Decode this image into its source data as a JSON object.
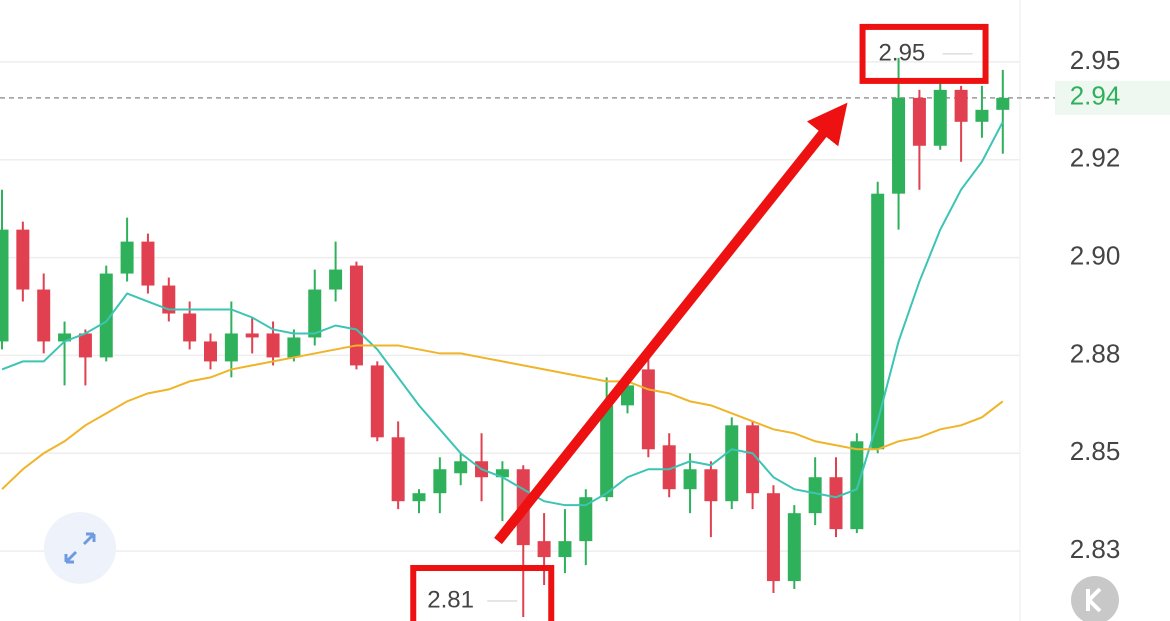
{
  "chart_data": {
    "type": "candlestick",
    "ylim": [
      2.809,
      2.9645
    ],
    "yticks": [
      {
        "value": 2.949,
        "label": "2.95"
      },
      {
        "value": 2.9245,
        "label": "2.92"
      },
      {
        "value": 2.9,
        "label": "2.90"
      },
      {
        "value": 2.8755,
        "label": "2.88"
      },
      {
        "value": 2.851,
        "label": "2.85"
      },
      {
        "value": 2.8265,
        "label": "2.83"
      }
    ],
    "grid": true,
    "up_color": "#2fb15b",
    "down_color": "#e0404f",
    "open": [
      2.879,
      2.907,
      2.892,
      2.879,
      2.881,
      2.875,
      2.896,
      2.904,
      2.893,
      2.886,
      2.879,
      2.874,
      2.881,
      2.881,
      2.875,
      2.88,
      2.892,
      2.898,
      2.873,
      2.855,
      2.839,
      2.841,
      2.846,
      2.849,
      2.845,
      2.847,
      2.829,
      2.825,
      2.829,
      2.84,
      2.863,
      2.872,
      2.853,
      2.842,
      2.847,
      2.839,
      2.858,
      2.841,
      2.819,
      2.836,
      2.845,
      2.832,
      2.852,
      2.916,
      2.94,
      2.928,
      2.942,
      2.934,
      2.937
    ],
    "high": [
      2.917,
      2.909,
      2.896,
      2.884,
      2.882,
      2.898,
      2.91,
      2.906,
      2.895,
      2.889,
      2.881,
      2.889,
      2.885,
      2.884,
      2.882,
      2.897,
      2.904,
      2.899,
      2.874,
      2.859,
      2.842,
      2.85,
      2.851,
      2.856,
      2.849,
      2.848,
      2.836,
      2.837,
      2.842,
      2.87,
      2.871,
      2.877,
      2.856,
      2.851,
      2.849,
      2.86,
      2.859,
      2.843,
      2.838,
      2.85,
      2.85,
      2.856,
      2.919,
      2.95,
      2.942,
      2.944,
      2.943,
      2.943,
      2.947
    ],
    "low": [
      2.877,
      2.889,
      2.876,
      2.868,
      2.868,
      2.874,
      2.894,
      2.891,
      2.884,
      2.877,
      2.872,
      2.87,
      2.876,
      2.873,
      2.874,
      2.878,
      2.889,
      2.872,
      2.854,
      2.837,
      2.836,
      2.836,
      2.843,
      2.839,
      2.834,
      2.81,
      2.818,
      2.821,
      2.823,
      2.839,
      2.861,
      2.85,
      2.84,
      2.836,
      2.83,
      2.837,
      2.837,
      2.816,
      2.817,
      2.833,
      2.83,
      2.831,
      2.851,
      2.907,
      2.917,
      2.927,
      2.924,
      2.93,
      2.926
    ],
    "close": [
      2.907,
      2.892,
      2.879,
      2.881,
      2.875,
      2.896,
      2.904,
      2.893,
      2.886,
      2.879,
      2.874,
      2.881,
      2.88,
      2.875,
      2.88,
      2.892,
      2.897,
      2.873,
      2.855,
      2.839,
      2.841,
      2.847,
      2.849,
      2.845,
      2.847,
      2.828,
      2.825,
      2.829,
      2.84,
      2.863,
      2.868,
      2.852,
      2.842,
      2.847,
      2.839,
      2.858,
      2.841,
      2.819,
      2.836,
      2.845,
      2.832,
      2.854,
      2.916,
      2.94,
      2.928,
      2.942,
      2.934,
      2.937,
      2.94
    ],
    "moving_averages": [
      {
        "color": "#3cc4b4",
        "values": [
          2.872,
          2.874,
          2.874,
          2.879,
          2.881,
          2.884,
          2.891,
          2.889,
          2.887,
          2.887,
          2.887,
          2.887,
          2.885,
          2.882,
          2.881,
          2.881,
          2.883,
          2.882,
          2.877,
          2.87,
          2.863,
          2.857,
          2.851,
          2.847,
          2.845,
          2.842,
          2.839,
          2.838,
          2.838,
          2.841,
          2.845,
          2.847,
          2.847,
          2.849,
          2.848,
          2.852,
          2.851,
          2.845,
          2.842,
          2.841,
          2.84,
          2.842,
          2.859,
          2.879,
          2.894,
          2.907,
          2.917,
          2.924,
          2.934
        ]
      },
      {
        "color": "#f0b429",
        "values": [
          2.842,
          2.847,
          2.851,
          2.854,
          2.858,
          2.861,
          2.864,
          2.866,
          2.867,
          2.869,
          2.87,
          2.872,
          2.873,
          2.874,
          2.875,
          2.876,
          2.877,
          2.878,
          2.878,
          2.878,
          2.877,
          2.876,
          2.876,
          2.875,
          2.874,
          2.873,
          2.872,
          2.871,
          2.87,
          2.869,
          2.869,
          2.867,
          2.866,
          2.864,
          2.863,
          2.861,
          2.859,
          2.857,
          2.856,
          2.854,
          2.853,
          2.852,
          2.852,
          2.854,
          2.855,
          2.857,
          2.858,
          2.86,
          2.864
        ]
      }
    ],
    "current_price": 2.94,
    "current_color": "#2fb15b",
    "max_label": 2.95,
    "min_label": 2.81,
    "highlight_color": "#ee1111"
  }
}
